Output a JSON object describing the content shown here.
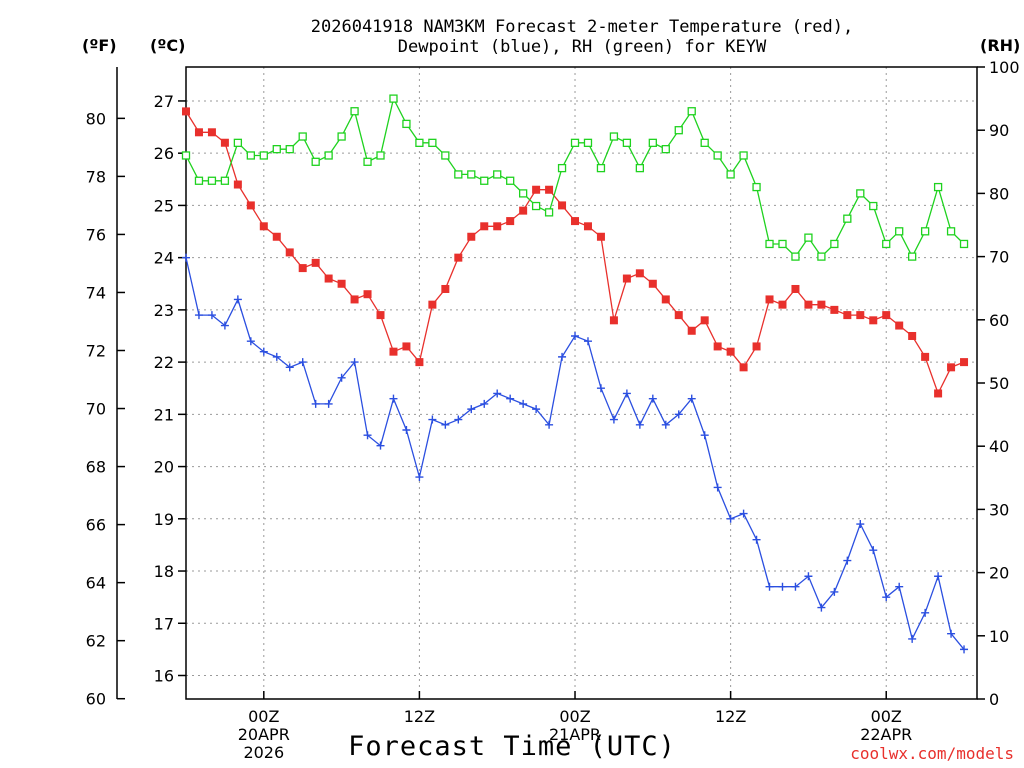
{
  "chart_data": {
    "type": "line",
    "title_line1": "2026041918 NAM3KM Forecast 2-meter Temperature (red),",
    "title_line2": "Dewpoint (blue), RH (green) for KEYW",
    "xlabel": "Forecast Time (UTC)",
    "credit": "coolwx.com/models",
    "units": {
      "fahrenheit": "(ºF)",
      "celsius": "(ºC)",
      "rh": "(RH)"
    },
    "x_range_hours": [
      0,
      61
    ],
    "x_ticks": [
      {
        "hour": 6,
        "label": "00Z",
        "sub1": "20APR",
        "sub2": "2026"
      },
      {
        "hour": 18,
        "label": "12Z",
        "sub1": "",
        "sub2": ""
      },
      {
        "hour": 30,
        "label": "00Z",
        "sub1": "21APR",
        "sub2": ""
      },
      {
        "hour": 42,
        "label": "12Z",
        "sub1": "",
        "sub2": ""
      },
      {
        "hour": 54,
        "label": "00Z",
        "sub1": "22APR",
        "sub2": ""
      }
    ],
    "celsius_axis": {
      "range": [
        15.55,
        27.65
      ],
      "ticks": [
        16,
        17,
        18,
        19,
        20,
        21,
        22,
        23,
        24,
        25,
        26,
        27
      ]
    },
    "fahrenheit_axis": {
      "range": [
        59.99,
        81.77
      ],
      "ticks": [
        60,
        62,
        64,
        66,
        68,
        70,
        72,
        74,
        76,
        78,
        80
      ]
    },
    "rh_axis": {
      "range": [
        0,
        100
      ],
      "ticks": [
        0,
        10,
        20,
        30,
        40,
        50,
        60,
        70,
        80,
        90,
        100
      ]
    },
    "series": [
      {
        "name": "Temperature",
        "color": "#e8302c",
        "axis": "celsius",
        "marker": "filled-square",
        "values": [
          26.8,
          26.4,
          26.4,
          26.2,
          25.4,
          25.0,
          24.6,
          24.4,
          24.1,
          23.8,
          23.9,
          23.6,
          23.5,
          23.2,
          23.3,
          22.9,
          22.2,
          22.3,
          22.0,
          23.1,
          23.4,
          24.0,
          24.4,
          24.6,
          24.6,
          24.7,
          24.9,
          25.3,
          25.3,
          25.0,
          24.7,
          24.6,
          24.4,
          22.8,
          23.6,
          23.7,
          23.5,
          23.2,
          22.9,
          22.6,
          22.8,
          22.3,
          22.2,
          21.9,
          22.3,
          23.2,
          23.1,
          23.4,
          23.1,
          23.1,
          23.0,
          22.9,
          22.9,
          22.8,
          22.9,
          22.7,
          22.5,
          22.1,
          21.4,
          21.9,
          22.0
        ]
      },
      {
        "name": "Dewpoint",
        "color": "#2b4fe0",
        "axis": "celsius",
        "marker": "plus",
        "values": [
          24.0,
          22.9,
          22.9,
          22.7,
          23.2,
          22.4,
          22.2,
          22.1,
          21.9,
          22.0,
          21.2,
          21.2,
          21.7,
          22.0,
          20.6,
          20.4,
          21.3,
          20.7,
          19.8,
          20.9,
          20.8,
          20.9,
          21.1,
          21.2,
          21.4,
          21.3,
          21.2,
          21.1,
          20.8,
          22.1,
          22.5,
          22.4,
          21.5,
          20.9,
          21.4,
          20.8,
          21.3,
          20.8,
          21.0,
          21.3,
          20.6,
          19.6,
          19.0,
          19.1,
          18.6,
          17.7,
          17.7,
          17.7,
          17.9,
          17.3,
          17.6,
          18.2,
          18.9,
          18.4,
          17.5,
          17.7,
          16.7,
          17.2,
          17.9,
          16.8,
          16.5
        ]
      },
      {
        "name": "RH",
        "color": "#1fd21f",
        "axis": "rh",
        "marker": "open-square",
        "values": [
          86,
          82,
          82,
          82,
          88,
          86,
          86,
          87,
          87,
          89,
          85,
          86,
          89,
          93,
          85,
          86,
          95,
          91,
          88,
          88,
          86,
          83,
          83,
          82,
          83,
          82,
          80,
          78,
          77,
          84,
          88,
          88,
          84,
          89,
          88,
          84,
          88,
          87,
          90,
          93,
          88,
          86,
          83,
          86,
          81,
          72,
          72,
          70,
          73,
          70,
          72,
          76,
          80,
          78,
          72,
          74,
          70,
          74,
          81,
          74,
          72
        ]
      }
    ]
  }
}
